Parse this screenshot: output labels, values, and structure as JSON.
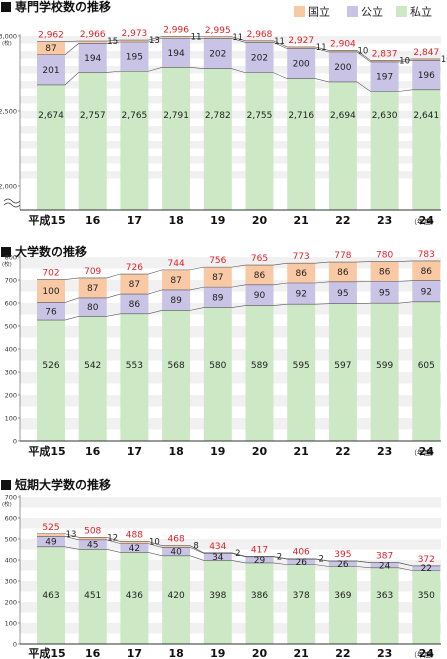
{
  "legend": [
    {
      "name": "国立",
      "color": "#f8c9a4"
    },
    {
      "name": "公立",
      "color": "#c9c3e6"
    },
    {
      "name": "私立",
      "color": "#cde8c5"
    }
  ],
  "year_unit": "（年度）",
  "chart_data": [
    {
      "type": "bar",
      "stacked": true,
      "title": "専門学校数の推移",
      "categories": [
        "平成15",
        "16",
        "17",
        "18",
        "19",
        "20",
        "21",
        "22",
        "23",
        "24"
      ],
      "series": [
        {
          "name": "私立",
          "values": [
            2674,
            2757,
            2765,
            2791,
            2782,
            2755,
            2716,
            2694,
            2630,
            2641
          ]
        },
        {
          "name": "公立",
          "values": [
            201,
            194,
            195,
            194,
            202,
            202,
            200,
            200,
            197,
            196
          ]
        },
        {
          "name": "国立",
          "values": [
            87,
            15,
            13,
            11,
            11,
            11,
            11,
            10,
            10,
            10
          ]
        }
      ],
      "totals": [
        2962,
        2966,
        2973,
        2996,
        2995,
        2968,
        2927,
        2904,
        2837,
        2847
      ],
      "yticks": [
        "3,000",
        "2,500",
        "2,000"
      ],
      "yunit": "(校)",
      "ylim": [
        2000,
        3000
      ],
      "axis_break": true,
      "grid": true
    },
    {
      "type": "bar",
      "stacked": true,
      "title": "大学数の推移",
      "categories": [
        "平成15",
        "16",
        "17",
        "18",
        "19",
        "20",
        "21",
        "22",
        "23",
        "24"
      ],
      "series": [
        {
          "name": "私立",
          "values": [
            526,
            542,
            553,
            568,
            580,
            589,
            595,
            597,
            599,
            605
          ]
        },
        {
          "name": "公立",
          "values": [
            76,
            80,
            86,
            89,
            89,
            90,
            92,
            95,
            95,
            92
          ]
        },
        {
          "name": "国立",
          "values": [
            100,
            87,
            87,
            87,
            87,
            86,
            86,
            86,
            86,
            86
          ]
        }
      ],
      "totals": [
        702,
        709,
        726,
        744,
        756,
        765,
        773,
        778,
        780,
        783
      ],
      "yticks": [
        "800",
        "700",
        "600",
        "500",
        "400",
        "300",
        "200",
        "100",
        "0"
      ],
      "yunit": "(校)",
      "ylim": [
        0,
        800
      ],
      "grid": true
    },
    {
      "type": "bar",
      "stacked": true,
      "title": "短期大学数の推移",
      "categories": [
        "平成15",
        "16",
        "17",
        "18",
        "19",
        "20",
        "21",
        "22",
        "23",
        "24"
      ],
      "series": [
        {
          "name": "私立",
          "values": [
            463,
            451,
            436,
            420,
            398,
            386,
            378,
            369,
            363,
            350
          ]
        },
        {
          "name": "公立",
          "values": [
            49,
            45,
            42,
            40,
            34,
            29,
            26,
            26,
            24,
            22
          ]
        },
        {
          "name": "国立",
          "values": [
            13,
            12,
            10,
            8,
            2,
            2,
            2,
            0,
            0,
            0
          ]
        }
      ],
      "totals": [
        525,
        508,
        488,
        468,
        434,
        417,
        406,
        395,
        387,
        372
      ],
      "yticks": [
        "700",
        "600",
        "500",
        "400",
        "300",
        "200",
        "100",
        "0"
      ],
      "yunit": "(校)",
      "ylim": [
        0,
        700
      ],
      "grid": true
    }
  ]
}
